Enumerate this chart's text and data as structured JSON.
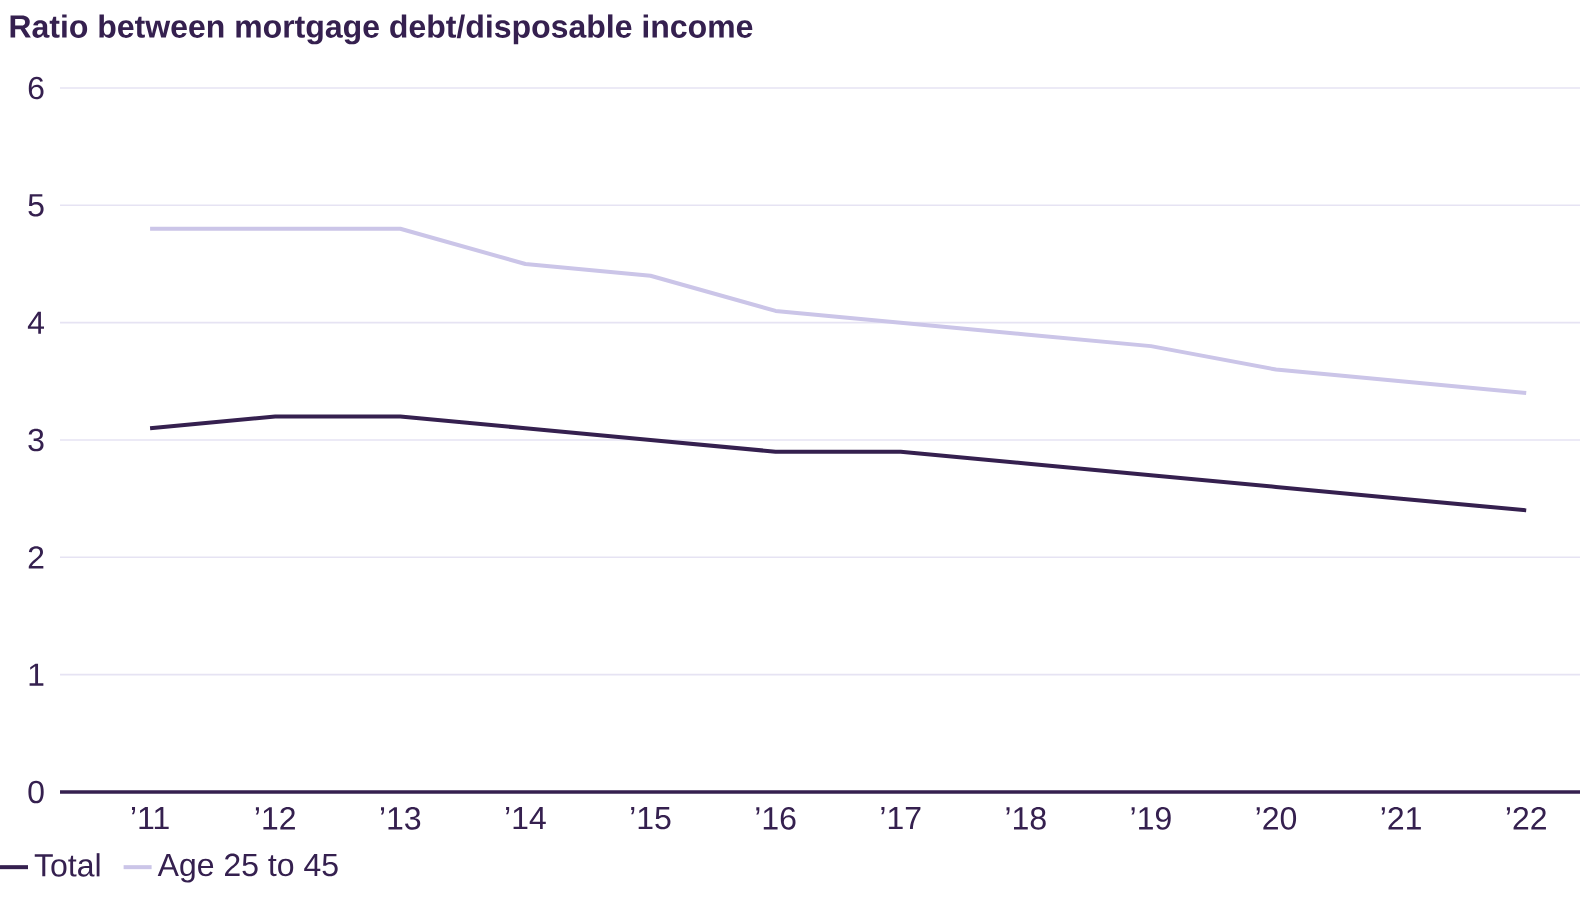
{
  "chart_data": {
    "type": "line",
    "title": "Ratio between mortgage debt/disposable income",
    "categories": [
      "’11",
      "’12",
      "’13",
      "’14",
      "’15",
      "’16",
      "’17",
      "’18",
      "’19",
      "’20",
      "’21",
      "’22"
    ],
    "series": [
      {
        "name": "Total",
        "color": "#35204f",
        "values": [
          3.1,
          3.2,
          3.2,
          3.1,
          3.0,
          2.9,
          2.9,
          2.8,
          2.7,
          2.6,
          2.5,
          2.4
        ]
      },
      {
        "name": "Age 25 to 45",
        "color": "#cbc5e8",
        "values": [
          4.8,
          4.8,
          4.8,
          4.5,
          4.4,
          4.1,
          4.0,
          3.9,
          3.8,
          3.6,
          3.5,
          3.4
        ]
      }
    ],
    "ylim": [
      0,
      6
    ],
    "yticks": [
      0,
      1,
      2,
      3,
      4,
      5,
      6
    ],
    "grid": "y",
    "legend": "bottom left",
    "marker": "none",
    "line_style": "solid"
  }
}
